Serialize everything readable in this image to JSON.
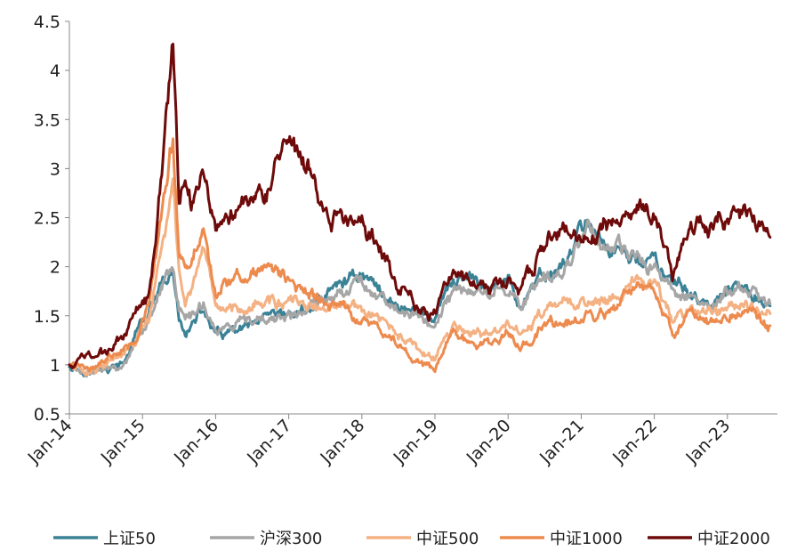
{
  "chart_data": {
    "type": "line",
    "title": "",
    "xlabel": "",
    "ylabel": "",
    "ylim": [
      0.5,
      4.5
    ],
    "yticks": [
      "0.5",
      "1",
      "1.5",
      "2",
      "2.5",
      "3",
      "3.5",
      "4",
      "4.5"
    ],
    "xticks": [
      "Jan-14",
      "Jan-15",
      "Jan-16",
      "Jan-17",
      "Jan-18",
      "Jan-19",
      "Jan-20",
      "Jan-21",
      "Jan-22",
      "Jan-23"
    ],
    "grid": false,
    "legend_position": "bottom",
    "x_range": [
      "2014-01",
      "2023-08"
    ],
    "series": [
      {
        "name": "上证50",
        "color": "#3A8296",
        "points": [
          [
            "2014-01",
            1.0
          ],
          [
            "2014-04",
            0.93
          ],
          [
            "2014-07",
            0.95
          ],
          [
            "2014-10",
            1.0
          ],
          [
            "2014-12",
            1.35
          ],
          [
            "2015-02",
            1.5
          ],
          [
            "2015-04",
            1.75
          ],
          [
            "2015-06",
            1.9
          ],
          [
            "2015-07",
            1.45
          ],
          [
            "2015-08",
            1.35
          ],
          [
            "2015-09",
            1.4
          ],
          [
            "2015-11",
            1.55
          ],
          [
            "2016-01",
            1.3
          ],
          [
            "2016-04",
            1.32
          ],
          [
            "2016-07",
            1.38
          ],
          [
            "2016-10",
            1.45
          ],
          [
            "2017-01",
            1.5
          ],
          [
            "2017-04",
            1.55
          ],
          [
            "2017-07",
            1.7
          ],
          [
            "2017-10",
            1.85
          ],
          [
            "2018-01",
            1.95
          ],
          [
            "2018-04",
            1.75
          ],
          [
            "2018-07",
            1.6
          ],
          [
            "2018-10",
            1.55
          ],
          [
            "2019-01",
            1.48
          ],
          [
            "2019-04",
            1.85
          ],
          [
            "2019-07",
            1.85
          ],
          [
            "2019-10",
            1.8
          ],
          [
            "2020-01",
            1.85
          ],
          [
            "2020-03",
            1.6
          ],
          [
            "2020-07",
            1.9
          ],
          [
            "2020-10",
            2.0
          ],
          [
            "2021-02",
            2.5
          ],
          [
            "2021-05",
            2.2
          ],
          [
            "2021-09",
            2.1
          ],
          [
            "2022-01",
            2.05
          ],
          [
            "2022-04",
            1.8
          ],
          [
            "2022-07",
            1.75
          ],
          [
            "2022-10",
            1.55
          ],
          [
            "2023-01",
            1.75
          ],
          [
            "2023-04",
            1.75
          ],
          [
            "2023-08",
            1.6
          ]
        ]
      },
      {
        "name": "沪深300",
        "color": "#A6A6A6",
        "points": [
          [
            "2014-01",
            1.0
          ],
          [
            "2014-04",
            0.92
          ],
          [
            "2014-07",
            0.94
          ],
          [
            "2014-10",
            1.02
          ],
          [
            "2014-12",
            1.3
          ],
          [
            "2015-02",
            1.45
          ],
          [
            "2015-04",
            1.8
          ],
          [
            "2015-06",
            2.05
          ],
          [
            "2015-07",
            1.6
          ],
          [
            "2015-08",
            1.45
          ],
          [
            "2015-09",
            1.5
          ],
          [
            "2015-11",
            1.65
          ],
          [
            "2016-01",
            1.35
          ],
          [
            "2016-04",
            1.38
          ],
          [
            "2016-07",
            1.42
          ],
          [
            "2016-10",
            1.45
          ],
          [
            "2017-01",
            1.5
          ],
          [
            "2017-04",
            1.55
          ],
          [
            "2017-07",
            1.65
          ],
          [
            "2017-10",
            1.8
          ],
          [
            "2018-01",
            1.85
          ],
          [
            "2018-04",
            1.72
          ],
          [
            "2018-07",
            1.55
          ],
          [
            "2018-10",
            1.48
          ],
          [
            "2019-01",
            1.42
          ],
          [
            "2019-04",
            1.75
          ],
          [
            "2019-07",
            1.75
          ],
          [
            "2019-10",
            1.75
          ],
          [
            "2020-01",
            1.8
          ],
          [
            "2020-03",
            1.6
          ],
          [
            "2020-07",
            1.85
          ],
          [
            "2020-10",
            1.95
          ],
          [
            "2021-02",
            2.45
          ],
          [
            "2021-05",
            2.2
          ],
          [
            "2021-09",
            2.1
          ],
          [
            "2022-01",
            2.0
          ],
          [
            "2022-04",
            1.75
          ],
          [
            "2022-07",
            1.75
          ],
          [
            "2022-10",
            1.55
          ],
          [
            "2023-01",
            1.75
          ],
          [
            "2023-04",
            1.75
          ],
          [
            "2023-08",
            1.62
          ]
        ]
      },
      {
        "name": "中证500",
        "color": "#F4B183",
        "points": [
          [
            "2014-01",
            1.0
          ],
          [
            "2014-04",
            0.95
          ],
          [
            "2014-07",
            1.0
          ],
          [
            "2014-10",
            1.1
          ],
          [
            "2014-12",
            1.25
          ],
          [
            "2015-02",
            1.45
          ],
          [
            "2015-04",
            2.1
          ],
          [
            "2015-06",
            2.8
          ],
          [
            "2015-07",
            1.9
          ],
          [
            "2015-08",
            1.7
          ],
          [
            "2015-09",
            1.75
          ],
          [
            "2015-11",
            2.05
          ],
          [
            "2016-01",
            1.55
          ],
          [
            "2016-04",
            1.6
          ],
          [
            "2016-07",
            1.62
          ],
          [
            "2016-10",
            1.65
          ],
          [
            "2017-01",
            1.62
          ],
          [
            "2017-04",
            1.6
          ],
          [
            "2017-07",
            1.55
          ],
          [
            "2017-10",
            1.6
          ],
          [
            "2018-01",
            1.55
          ],
          [
            "2018-04",
            1.45
          ],
          [
            "2018-07",
            1.3
          ],
          [
            "2018-10",
            1.15
          ],
          [
            "2019-01",
            1.05
          ],
          [
            "2019-04",
            1.4
          ],
          [
            "2019-07",
            1.3
          ],
          [
            "2019-10",
            1.3
          ],
          [
            "2020-01",
            1.42
          ],
          [
            "2020-03",
            1.3
          ],
          [
            "2020-07",
            1.55
          ],
          [
            "2020-10",
            1.6
          ],
          [
            "2021-02",
            1.65
          ],
          [
            "2021-05",
            1.65
          ],
          [
            "2021-09",
            1.85
          ],
          [
            "2022-01",
            1.8
          ],
          [
            "2022-04",
            1.45
          ],
          [
            "2022-07",
            1.62
          ],
          [
            "2022-10",
            1.5
          ],
          [
            "2023-01",
            1.62
          ],
          [
            "2023-04",
            1.65
          ],
          [
            "2023-08",
            1.52
          ]
        ]
      },
      {
        "name": "中证1000",
        "color": "#ED8B4F",
        "points": [
          [
            "2014-01",
            1.0
          ],
          [
            "2014-04",
            0.97
          ],
          [
            "2014-07",
            1.05
          ],
          [
            "2014-10",
            1.2
          ],
          [
            "2014-12",
            1.3
          ],
          [
            "2015-02",
            1.6
          ],
          [
            "2015-04",
            2.4
          ],
          [
            "2015-06",
            3.3
          ],
          [
            "2015-07",
            2.2
          ],
          [
            "2015-08",
            1.95
          ],
          [
            "2015-09",
            2.0
          ],
          [
            "2015-11",
            2.4
          ],
          [
            "2016-01",
            1.75
          ],
          [
            "2016-04",
            1.85
          ],
          [
            "2016-07",
            1.95
          ],
          [
            "2016-10",
            2.0
          ],
          [
            "2017-01",
            1.85
          ],
          [
            "2017-04",
            1.75
          ],
          [
            "2017-07",
            1.6
          ],
          [
            "2017-10",
            1.6
          ],
          [
            "2018-01",
            1.45
          ],
          [
            "2018-04",
            1.35
          ],
          [
            "2018-07",
            1.2
          ],
          [
            "2018-10",
            1.05
          ],
          [
            "2019-01",
            0.95
          ],
          [
            "2019-04",
            1.35
          ],
          [
            "2019-07",
            1.2
          ],
          [
            "2019-10",
            1.2
          ],
          [
            "2020-01",
            1.3
          ],
          [
            "2020-03",
            1.2
          ],
          [
            "2020-07",
            1.4
          ],
          [
            "2020-10",
            1.45
          ],
          [
            "2021-02",
            1.45
          ],
          [
            "2021-05",
            1.5
          ],
          [
            "2021-09",
            1.75
          ],
          [
            "2022-01",
            1.72
          ],
          [
            "2022-04",
            1.3
          ],
          [
            "2022-07",
            1.55
          ],
          [
            "2022-10",
            1.45
          ],
          [
            "2023-01",
            1.5
          ],
          [
            "2023-04",
            1.55
          ],
          [
            "2023-08",
            1.4
          ]
        ]
      },
      {
        "name": "中证2000",
        "color": "#6E0A0A",
        "points": [
          [
            "2014-01",
            1.0
          ],
          [
            "2014-04",
            1.1
          ],
          [
            "2014-07",
            1.12
          ],
          [
            "2014-10",
            1.3
          ],
          [
            "2014-12",
            1.6
          ],
          [
            "2015-02",
            1.7
          ],
          [
            "2015-04",
            2.9
          ],
          [
            "2015-06",
            4.3
          ],
          [
            "2015-07",
            2.6
          ],
          [
            "2015-08",
            2.9
          ],
          [
            "2015-09",
            2.6
          ],
          [
            "2015-11",
            3.1
          ],
          [
            "2016-01",
            2.4
          ],
          [
            "2016-04",
            2.6
          ],
          [
            "2016-07",
            2.8
          ],
          [
            "2016-10",
            2.85
          ],
          [
            "2016-12",
            3.15
          ],
          [
            "2017-04",
            3.0
          ],
          [
            "2017-07",
            2.55
          ],
          [
            "2017-10",
            2.45
          ],
          [
            "2018-01",
            2.5
          ],
          [
            "2018-04",
            2.15
          ],
          [
            "2018-07",
            1.85
          ],
          [
            "2018-10",
            1.6
          ],
          [
            "2019-01",
            1.5
          ],
          [
            "2019-04",
            2.0
          ],
          [
            "2019-07",
            1.8
          ],
          [
            "2019-10",
            1.8
          ],
          [
            "2020-01",
            1.85
          ],
          [
            "2020-03",
            1.75
          ],
          [
            "2020-07",
            2.25
          ],
          [
            "2020-10",
            2.35
          ],
          [
            "2021-02",
            2.2
          ],
          [
            "2021-05",
            2.4
          ],
          [
            "2021-09",
            2.55
          ],
          [
            "2022-01",
            2.6
          ],
          [
            "2022-04",
            1.9
          ],
          [
            "2022-07",
            2.5
          ],
          [
            "2022-10",
            2.4
          ],
          [
            "2023-01",
            2.5
          ],
          [
            "2023-04",
            2.5
          ],
          [
            "2023-08",
            2.3
          ]
        ]
      }
    ]
  }
}
